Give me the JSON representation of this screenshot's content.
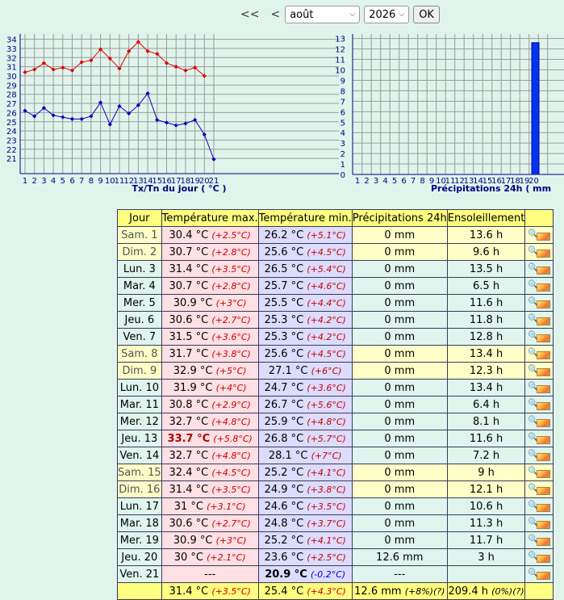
{
  "nav": {
    "prev_year": "<<",
    "prev_month": "<",
    "month": "août",
    "year": "2026",
    "ok_label": "OK"
  },
  "temp_chart": {
    "xlabel": "Tx/Tn du jour ( °C )",
    "y_ticks": [
      "34",
      "33",
      "32",
      "31",
      "30",
      "29",
      "28",
      "27",
      "26",
      "25",
      "24",
      "23",
      "22",
      "21"
    ],
    "x_ticks": [
      "1",
      "2",
      "3",
      "4",
      "5",
      "6",
      "7",
      "8",
      "9",
      "10",
      "11",
      "12",
      "13",
      "14",
      "15",
      "16",
      "17",
      "18",
      "19",
      "20",
      "21"
    ]
  },
  "precip_chart": {
    "xlabel": "Précipitations 24h ( mm",
    "y_ticks": [
      "13",
      "12",
      "11",
      "10",
      "9",
      "8",
      "7",
      "6",
      "5",
      "4",
      "3",
      "2",
      "1",
      "0"
    ],
    "x_ticks": [
      "1",
      "2",
      "3",
      "4",
      "5",
      "6",
      "7",
      "8",
      "9",
      "10",
      "11",
      "12",
      "13",
      "14",
      "15",
      "16",
      "17",
      "18",
      "19",
      "20"
    ]
  },
  "chart_data": [
    {
      "type": "line",
      "xlabel": "Tx/Tn du jour ( °C )",
      "x": [
        1,
        2,
        3,
        4,
        5,
        6,
        7,
        8,
        9,
        10,
        11,
        12,
        13,
        14,
        15,
        16,
        17,
        18,
        19,
        20,
        21
      ],
      "ylim": [
        20,
        34
      ],
      "grid": true,
      "series": [
        {
          "color": "#dd0000",
          "values": [
            30.4,
            30.7,
            31.4,
            30.7,
            30.9,
            30.6,
            31.5,
            31.7,
            32.9,
            31.9,
            30.8,
            32.7,
            33.7,
            32.7,
            32.4,
            31.4,
            31.0,
            30.6,
            30.9,
            30.0,
            null
          ]
        },
        {
          "color": "#0000bb",
          "values": [
            26.2,
            25.6,
            26.5,
            25.7,
            25.5,
            25.3,
            25.3,
            25.6,
            27.1,
            24.7,
            26.7,
            25.9,
            26.8,
            28.1,
            25.2,
            24.9,
            24.6,
            24.8,
            25.2,
            23.6,
            20.9
          ]
        }
      ]
    },
    {
      "type": "bar",
      "xlabel": "Précipitations 24h ( mm",
      "categories": [
        "1",
        "2",
        "3",
        "4",
        "5",
        "6",
        "7",
        "8",
        "9",
        "10",
        "11",
        "12",
        "13",
        "14",
        "15",
        "16",
        "17",
        "18",
        "19",
        "20"
      ],
      "values": [
        0,
        0,
        0,
        0,
        0,
        0,
        0,
        0,
        0,
        0,
        0,
        0,
        0,
        0,
        0,
        0,
        0,
        0,
        0,
        12.6
      ],
      "ylim": [
        0,
        13
      ],
      "grid": true,
      "color": "#0033ee"
    }
  ],
  "table": {
    "headers": [
      "Jour",
      "Température max.",
      "Température min.",
      "Précipitations 24h",
      "Ensoleillement",
      ""
    ],
    "rows": [
      {
        "day": "Sam. 1",
        "tx": "30.4 °C",
        "txa": "(+2.5°C)",
        "tn": "26.2 °C",
        "tna": "(+5.1°C)",
        "pr": "0 mm",
        "su": "13.6 h",
        "we": true
      },
      {
        "day": "Dim. 2",
        "tx": "30.7 °C",
        "txa": "(+2.8°C)",
        "tn": "25.6 °C",
        "tna": "(+4.5°C)",
        "pr": "0 mm",
        "su": "9.6 h",
        "we": true
      },
      {
        "day": "Lun. 3",
        "tx": "31.4 °C",
        "txa": "(+3.5°C)",
        "tn": "26.5 °C",
        "tna": "(+5.4°C)",
        "pr": "0 mm",
        "su": "13.5 h",
        "we": false
      },
      {
        "day": "Mar. 4",
        "tx": "30.7 °C",
        "txa": "(+2.8°C)",
        "tn": "25.7 °C",
        "tna": "(+4.6°C)",
        "pr": "0 mm",
        "su": "6.5 h",
        "we": false
      },
      {
        "day": "Mer. 5",
        "tx": "30.9 °C",
        "txa": "(+3°C)",
        "tn": "25.5 °C",
        "tna": "(+4.4°C)",
        "pr": "0 mm",
        "su": "11.6 h",
        "we": false
      },
      {
        "day": "Jeu. 6",
        "tx": "30.6 °C",
        "txa": "(+2.7°C)",
        "tn": "25.3 °C",
        "tna": "(+4.2°C)",
        "pr": "0 mm",
        "su": "11.8 h",
        "we": false
      },
      {
        "day": "Ven. 7",
        "tx": "31.5 °C",
        "txa": "(+3.6°C)",
        "tn": "25.3 °C",
        "tna": "(+4.2°C)",
        "pr": "0 mm",
        "su": "12.8 h",
        "we": false
      },
      {
        "day": "Sam. 8",
        "tx": "31.7 °C",
        "txa": "(+3.8°C)",
        "tn": "25.6 °C",
        "tna": "(+4.5°C)",
        "pr": "0 mm",
        "su": "13.4 h",
        "we": true
      },
      {
        "day": "Dim. 9",
        "tx": "32.9 °C",
        "txa": "(+5°C)",
        "tn": "27.1 °C",
        "tna": "(+6°C)",
        "pr": "0 mm",
        "su": "12.3 h",
        "we": true
      },
      {
        "day": "Lun. 10",
        "tx": "31.9 °C",
        "txa": "(+4°C)",
        "tn": "24.7 °C",
        "tna": "(+3.6°C)",
        "pr": "0 mm",
        "su": "13.4 h",
        "we": false
      },
      {
        "day": "Mar. 11",
        "tx": "30.8 °C",
        "txa": "(+2.9°C)",
        "tn": "26.7 °C",
        "tna": "(+5.6°C)",
        "pr": "0 mm",
        "su": "6.4 h",
        "we": false
      },
      {
        "day": "Mer. 12",
        "tx": "32.7 °C",
        "txa": "(+4.8°C)",
        "tn": "25.9 °C",
        "tna": "(+4.8°C)",
        "pr": "0 mm",
        "su": "8.1 h",
        "we": false
      },
      {
        "day": "Jeu. 13",
        "tx": "33.7 °C",
        "txa": "(+5.8°C)",
        "tn": "26.8 °C",
        "tna": "(+5.7°C)",
        "pr": "0 mm",
        "su": "11.6 h",
        "we": false,
        "txrec": true
      },
      {
        "day": "Ven. 14",
        "tx": "32.7 °C",
        "txa": "(+4.8°C)",
        "tn": "28.1 °C",
        "tna": "(+7°C)",
        "pr": "0 mm",
        "su": "7.2 h",
        "we": false
      },
      {
        "day": "Sam. 15",
        "tx": "32.4 °C",
        "txa": "(+4.5°C)",
        "tn": "25.2 °C",
        "tna": "(+4.1°C)",
        "pr": "0 mm",
        "su": "9 h",
        "we": true
      },
      {
        "day": "Dim. 16",
        "tx": "31.4 °C",
        "txa": "(+3.5°C)",
        "tn": "24.9 °C",
        "tna": "(+3.8°C)",
        "pr": "0 mm",
        "su": "12.1 h",
        "we": true
      },
      {
        "day": "Lun. 17",
        "tx": "31 °C",
        "txa": "(+3.1°C)",
        "tn": "24.6 °C",
        "tna": "(+3.5°C)",
        "pr": "0 mm",
        "su": "10.6 h",
        "we": false
      },
      {
        "day": "Mar. 18",
        "tx": "30.6 °C",
        "txa": "(+2.7°C)",
        "tn": "24.8 °C",
        "tna": "(+3.7°C)",
        "pr": "0 mm",
        "su": "11.3 h",
        "we": false
      },
      {
        "day": "Mer. 19",
        "tx": "30.9 °C",
        "txa": "(+3°C)",
        "tn": "25.2 °C",
        "tna": "(+4.1°C)",
        "pr": "0 mm",
        "su": "11.7 h",
        "we": false
      },
      {
        "day": "Jeu. 20",
        "tx": "30 °C",
        "txa": "(+2.1°C)",
        "tn": "23.6 °C",
        "tna": "(+2.5°C)",
        "pr": "12.6 mm",
        "su": "3 h",
        "we": false
      },
      {
        "day": "Ven. 21",
        "tx": "---",
        "txa": "",
        "tn": "20.9 °C",
        "tna": "(-0.2°C)",
        "pr": "---",
        "su": "",
        "we": false,
        "tnrec": true,
        "tncold": true
      }
    ],
    "totals": {
      "tx": "31.4 °C",
      "txa": "(+3.5°C)",
      "tn": "25.4 °C",
      "tna": "(+4.3°C)",
      "pr": "12.6 mm",
      "pra": "(+8%)(?)",
      "su": "209.4 h",
      "sua": "(0%)(?)"
    }
  },
  "colors": {
    "background": "#e0f4ec",
    "header_yellow": "#ffff80",
    "tx_column": "#ffe0e4",
    "tn_column": "#dcdcff",
    "weekend_row": "#ffffc8",
    "tx_line": "#dd0000",
    "tn_line": "#0000bb",
    "precip_bar": "#0033ee"
  }
}
